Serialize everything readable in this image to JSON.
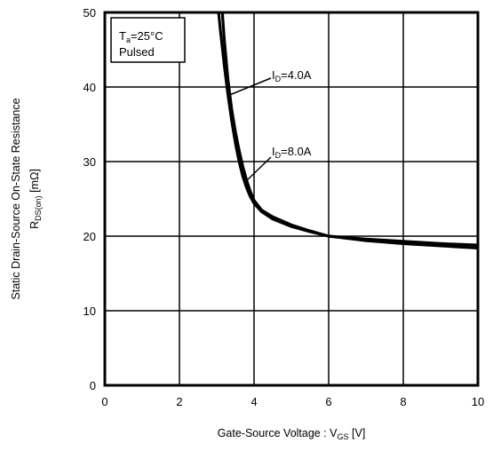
{
  "chart_data": {
    "type": "line",
    "xlabel": {
      "main": "Gate-Source Voltage : V",
      "sub": "GS",
      "unit": " [V]"
    },
    "ylabel": {
      "line1": "Static Drain-Source On-State Resistance",
      "line2_main": "R",
      "line2_sub": "DS(on)",
      "line2_unit": " [mΩ]"
    },
    "xlim": [
      0,
      10
    ],
    "ylim": [
      0,
      50
    ],
    "xticks": [
      "0",
      "2",
      "4",
      "6",
      "8",
      "10"
    ],
    "yticks": [
      "0",
      "10",
      "20",
      "30",
      "40",
      "50"
    ],
    "grid": true,
    "conditions": {
      "ta_main": "T",
      "ta_sub": "a",
      "ta_value": "=25°C",
      "pulsed": "Pulsed"
    },
    "series": [
      {
        "name": {
          "main": "I",
          "sub": "D",
          "value": "=4.0A"
        },
        "x": [
          3.05,
          3.1,
          3.2,
          3.3,
          3.4,
          3.5,
          3.6,
          3.7,
          3.8,
          3.9,
          4.0,
          4.2,
          4.5,
          5.0,
          5.5,
          6.0,
          7.0,
          8.0,
          9.0,
          10.0
        ],
        "y": [
          50,
          47.5,
          43.0,
          39.0,
          35.5,
          32.5,
          30.0,
          28.0,
          26.5,
          25.3,
          24.4,
          23.3,
          22.3,
          21.3,
          20.6,
          20.0,
          19.6,
          19.3,
          19.0,
          18.8
        ]
      },
      {
        "name": {
          "main": "I",
          "sub": "D",
          "value": "=8.0A"
        },
        "x": [
          3.15,
          3.2,
          3.3,
          3.4,
          3.5,
          3.6,
          3.7,
          3.8,
          3.9,
          4.0,
          4.2,
          4.5,
          5.0,
          5.5,
          6.0,
          7.0,
          8.0,
          9.0,
          10.0
        ],
        "y": [
          50,
          46.5,
          41.0,
          37.0,
          34.0,
          31.5,
          29.3,
          27.5,
          26.0,
          24.8,
          23.5,
          22.6,
          21.5,
          20.7,
          20.0,
          19.4,
          19.0,
          18.7,
          18.4
        ]
      }
    ]
  }
}
